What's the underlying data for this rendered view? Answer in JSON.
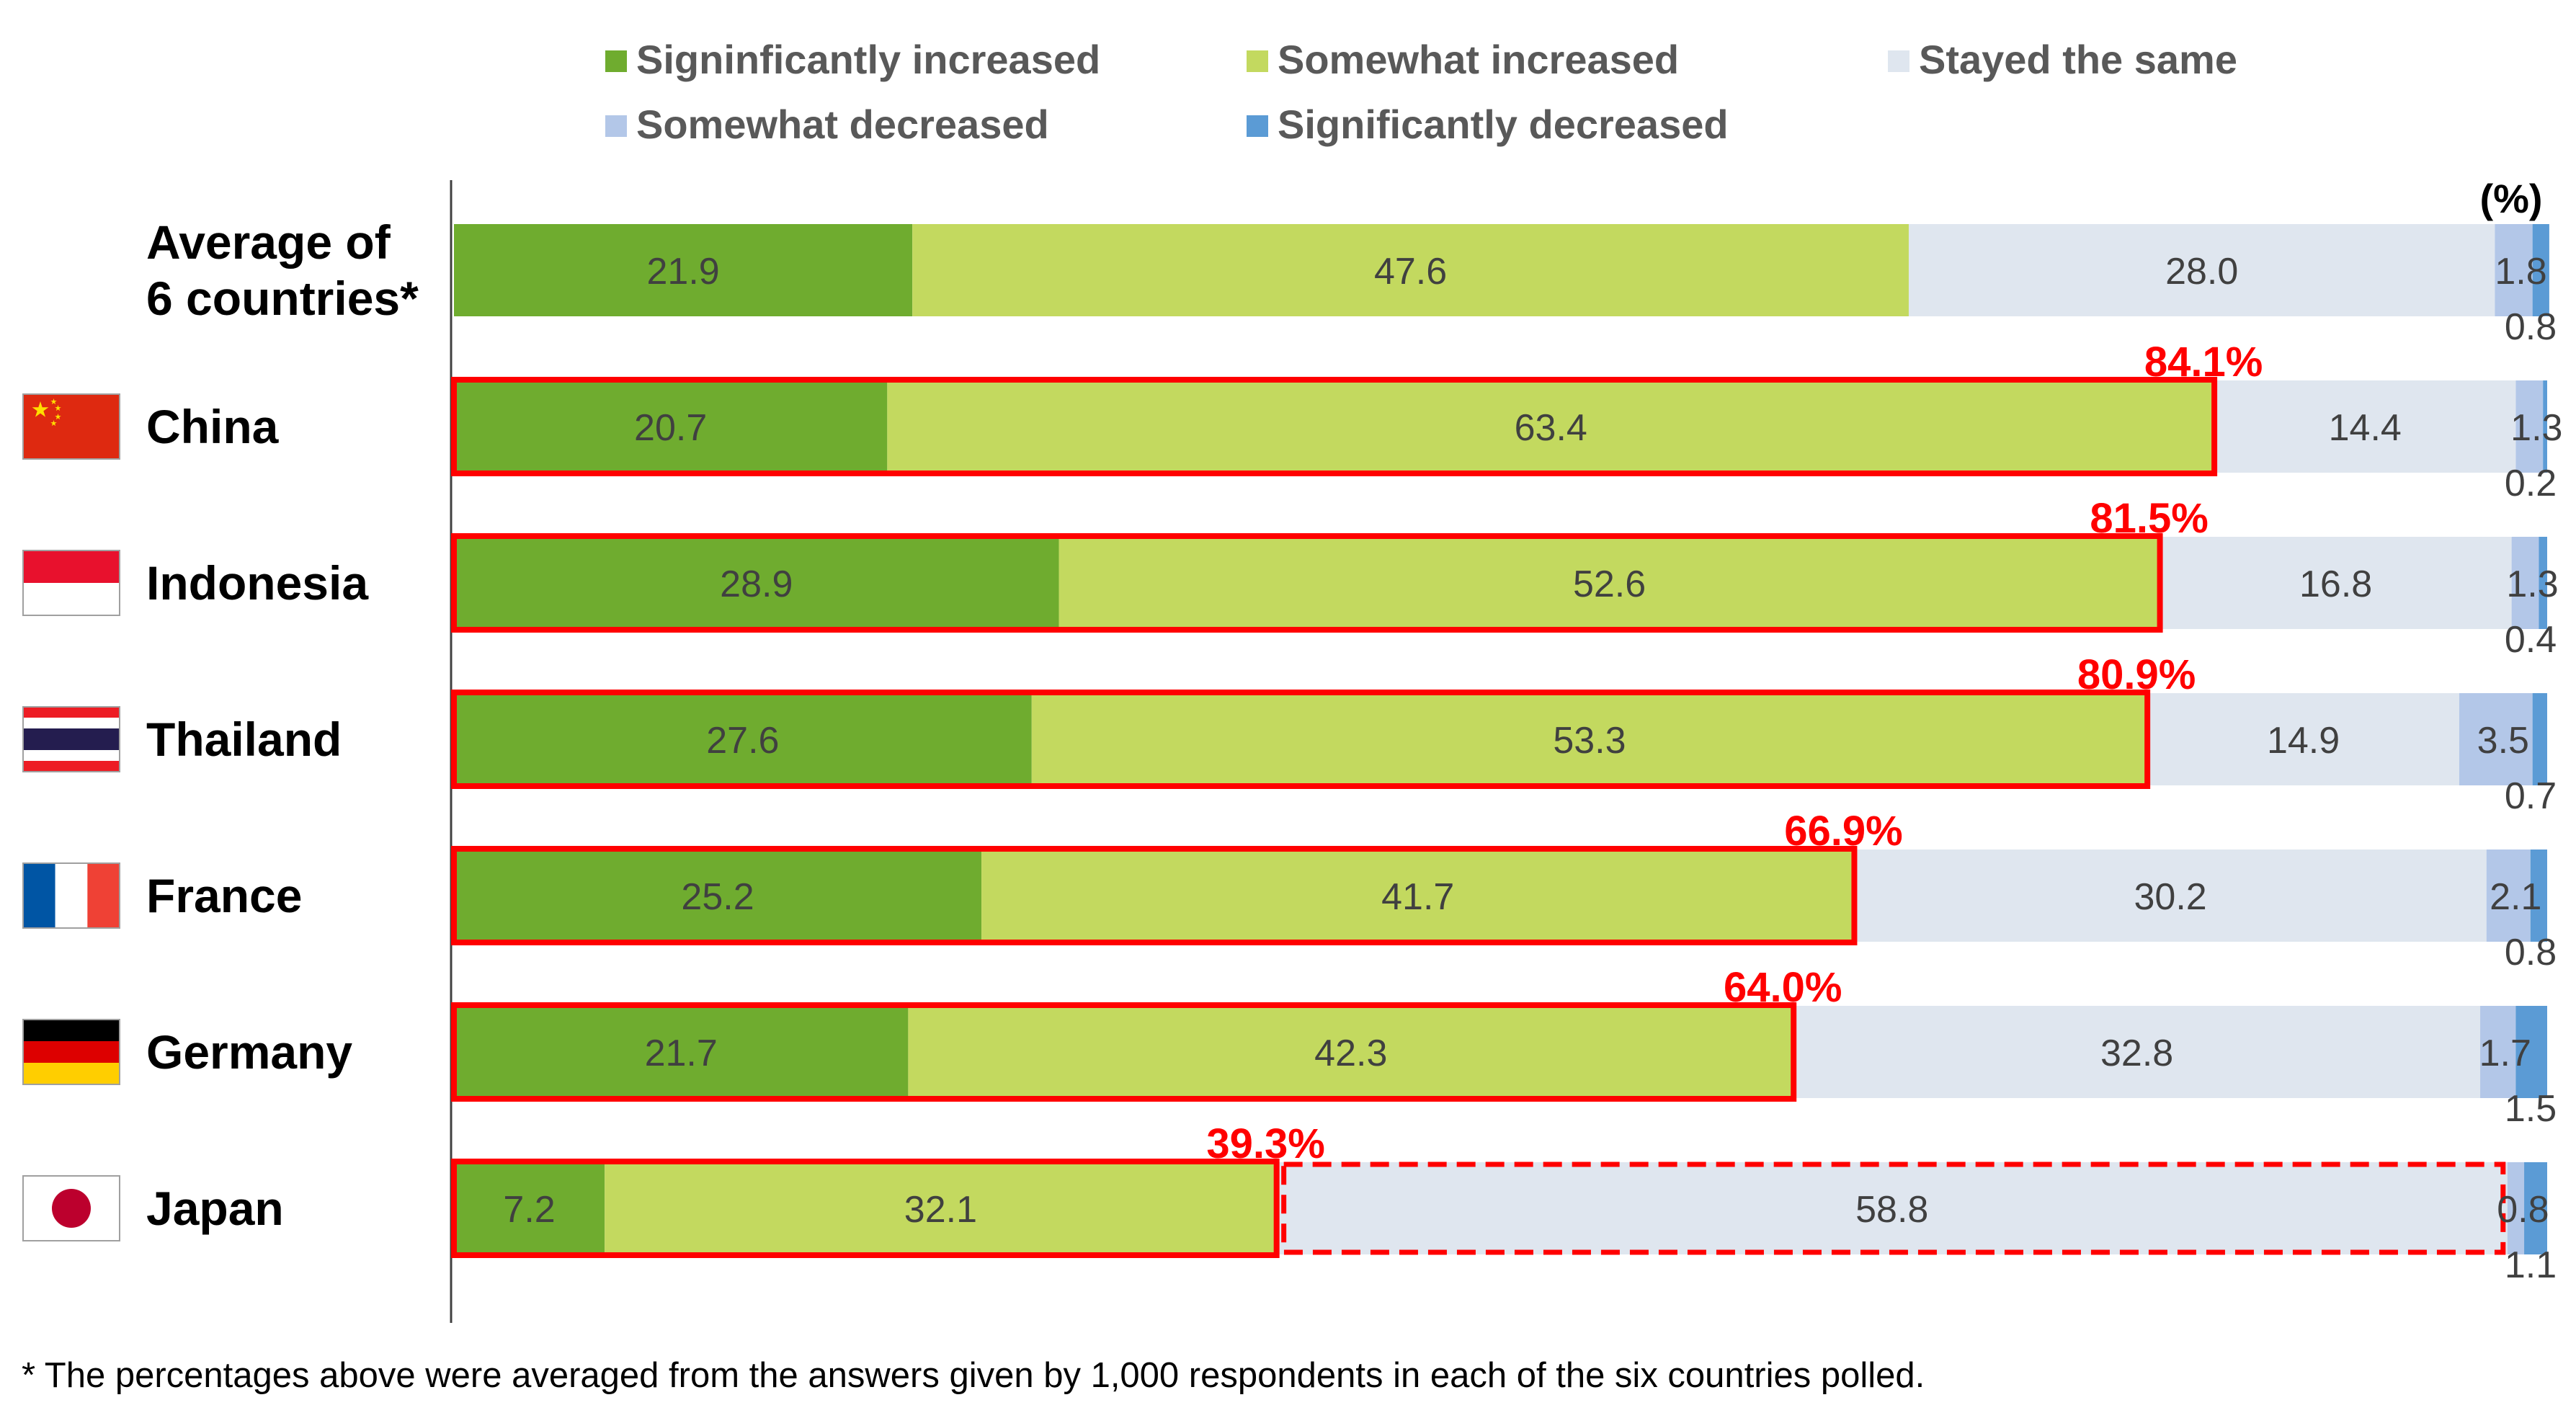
{
  "chart_data": {
    "type": "bar",
    "orientation": "horizontal",
    "stacked": true,
    "categories": [
      "Average of 6 countries*",
      "China",
      "Indonesia",
      "Thailand",
      "France",
      "Germany",
      "Japan"
    ],
    "category_lines": [
      [
        "Average of",
        "6 countries*"
      ],
      [
        "China"
      ],
      [
        "Indonesia"
      ],
      [
        "Thailand"
      ],
      [
        "France"
      ],
      [
        "Germany"
      ],
      [
        "Japan"
      ]
    ],
    "flags": [
      null,
      "china-flag",
      "indonesia-flag",
      "thailand-flag",
      "france-flag",
      "germany-flag",
      "japan-flag"
    ],
    "series": [
      {
        "name": "Signinficantly increased",
        "color": "#6fac2f",
        "values": [
          21.9,
          20.7,
          28.9,
          27.6,
          25.2,
          21.7,
          7.2
        ]
      },
      {
        "name": "Somewhat increased",
        "color": "#c3d95f",
        "values": [
          47.6,
          63.4,
          52.6,
          53.3,
          41.7,
          42.3,
          32.1
        ]
      },
      {
        "name": "Stayed the same",
        "color": "#dfe6ef",
        "values": [
          28.0,
          14.4,
          16.8,
          14.9,
          30.2,
          32.8,
          58.8
        ]
      },
      {
        "name": "Somewhat decreased",
        "color": "#b3c7e8",
        "values": [
          1.8,
          1.3,
          1.3,
          3.5,
          2.1,
          1.7,
          0.8
        ]
      },
      {
        "name": "Significantly decreased",
        "color": "#5b9bd5",
        "values": [
          0.8,
          0.2,
          0.4,
          0.7,
          0.8,
          1.5,
          1.1
        ]
      }
    ],
    "increased_totals": [
      null,
      "84.1%",
      "81.5%",
      "80.9%",
      "66.9%",
      "64.0%",
      "39.3%"
    ],
    "highlight_color": "#ff0000",
    "dashed_highlight": {
      "category": "Japan",
      "series": "Stayed the same"
    },
    "unit_label": "(%)",
    "xlim": [
      0,
      100
    ],
    "legend_position": "top",
    "grid": false,
    "footnote": "* The percentages above were averaged from the answers given by 1,000 respondents in each of the six countries polled."
  }
}
